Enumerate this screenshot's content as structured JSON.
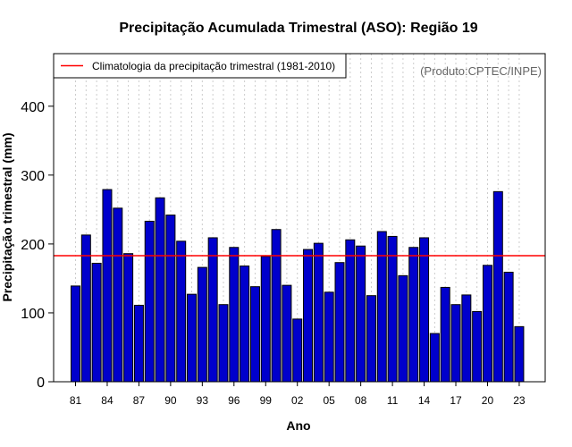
{
  "chart_data": {
    "type": "bar",
    "title": "Precipitação Acumulada Trimestral (ASO): Região 19",
    "xlabel": "Ano",
    "ylabel": "Precipitação trimestral (mm)",
    "ylim": [
      0,
      470
    ],
    "yticks": [
      0,
      100,
      200,
      300,
      400
    ],
    "xtick_labels": [
      "81",
      "84",
      "87",
      "90",
      "93",
      "96",
      "99",
      "02",
      "05",
      "08",
      "11",
      "14",
      "17",
      "20",
      "23"
    ],
    "grid": "vertical dotted",
    "categories": [
      "1981",
      "1982",
      "1983",
      "1984",
      "1985",
      "1986",
      "1987",
      "1988",
      "1989",
      "1990",
      "1991",
      "1992",
      "1993",
      "1994",
      "1995",
      "1996",
      "1997",
      "1998",
      "1999",
      "2000",
      "2001",
      "2002",
      "2003",
      "2004",
      "2005",
      "2006",
      "2007",
      "2008",
      "2009",
      "2010",
      "2011",
      "2012",
      "2013",
      "2014",
      "2015",
      "2016",
      "2017",
      "2018",
      "2019",
      "2020",
      "2021",
      "2022",
      "2023"
    ],
    "values": [
      139,
      213,
      172,
      279,
      252,
      186,
      111,
      233,
      267,
      242,
      204,
      127,
      166,
      209,
      112,
      195,
      168,
      138,
      182,
      221,
      140,
      91,
      192,
      201,
      130,
      173,
      206,
      197,
      125,
      218,
      211,
      154,
      195,
      209,
      70,
      137,
      112,
      126,
      102,
      169,
      276,
      159,
      80
    ],
    "bar_color": "#0000cc",
    "climatology": {
      "value": 183,
      "color": "#ff0000",
      "label": "Climatologia da precipitação trimestral (1981-2010)"
    },
    "legend_position": "top-left",
    "product_label": "(Produto:CPTEC/INPE)"
  }
}
